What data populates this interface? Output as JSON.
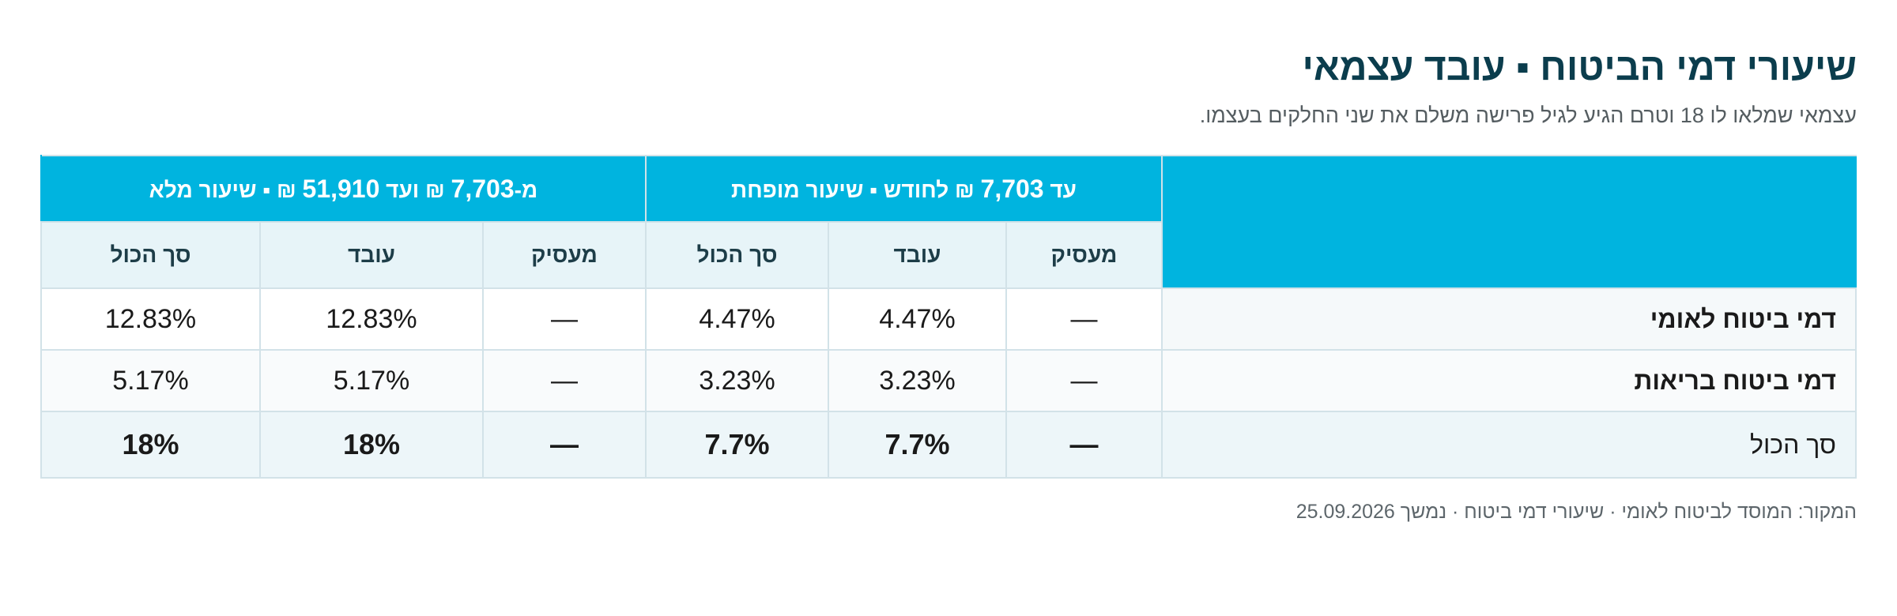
{
  "header": {
    "title": "שיעורי דמי הביטוח ▪ עובד עצמאי",
    "subtitle": "עצמאי שמלאו לו 18 וטרם הגיע לגיל פרישה משלם את שני החלקים בעצמו."
  },
  "table": {
    "bands": [
      {
        "prefix": "עד ",
        "amount": "7,703",
        "suffix": " ₪ לחודש ▪ שיעור מופחת"
      },
      {
        "prefix": "מ-",
        "amount": "7,703",
        "middle": " ₪ ועד ",
        "amount2": "51,910",
        "suffix": " ₪ ▪ שיעור מלא"
      }
    ],
    "subheaders": [
      "מעסיק",
      "עובד",
      "סך הכול",
      "מעסיק",
      "עובד",
      "סך הכול"
    ],
    "rows": [
      {
        "label": "דמי ביטוח לאומי",
        "cells": [
          "—",
          "4.47%",
          "4.47%",
          "—",
          "12.83%",
          "12.83%"
        ]
      },
      {
        "label": "דמי ביטוח בריאות",
        "cells": [
          "—",
          "3.23%",
          "3.23%",
          "—",
          "5.17%",
          "5.17%"
        ]
      },
      {
        "label": "סך הכול",
        "cells": [
          "—",
          "7.7%",
          "7.7%",
          "—",
          "18%",
          "18%"
        ]
      }
    ]
  },
  "footer": {
    "source": "המקור: המוסד לביטוח לאומי · שיעורי דמי ביטוח · נמשך 25.09.2026"
  }
}
